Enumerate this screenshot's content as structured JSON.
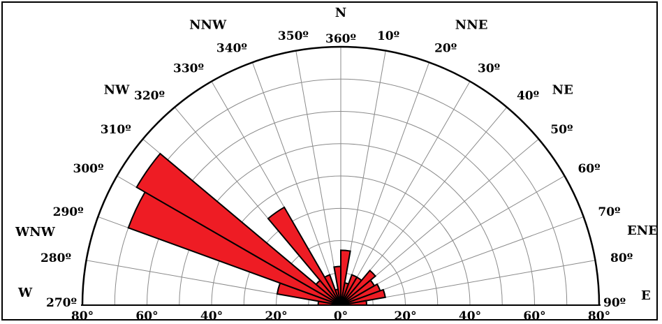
{
  "chart_data": {
    "type": "rose",
    "title": "",
    "half": "upper (270° through 360° to 90°)",
    "sector_width_deg": 10,
    "radial_range": [
      0,
      80
    ],
    "radial_tick_labels": [
      "80°",
      "60°",
      "40°",
      "20°",
      "0°",
      "20°",
      "40°",
      "60°",
      "80°"
    ],
    "angle_labels": [
      {
        "deg": 270,
        "text": "270º"
      },
      {
        "deg": 280,
        "text": "280º"
      },
      {
        "deg": 290,
        "text": "290º"
      },
      {
        "deg": 300,
        "text": "300º"
      },
      {
        "deg": 310,
        "text": "310º"
      },
      {
        "deg": 320,
        "text": "320º"
      },
      {
        "deg": 330,
        "text": "330º"
      },
      {
        "deg": 340,
        "text": "340º"
      },
      {
        "deg": 350,
        "text": "350º"
      },
      {
        "deg": 360,
        "text": "360º"
      },
      {
        "deg": 10,
        "text": "10º"
      },
      {
        "deg": 20,
        "text": "20º"
      },
      {
        "deg": 30,
        "text": "30º"
      },
      {
        "deg": 40,
        "text": "40º"
      },
      {
        "deg": 50,
        "text": "50º"
      },
      {
        "deg": 60,
        "text": "60º"
      },
      {
        "deg": 70,
        "text": "70º"
      },
      {
        "deg": 80,
        "text": "80º"
      },
      {
        "deg": 90,
        "text": "90º"
      }
    ],
    "direction_labels": [
      {
        "deg": 270,
        "text": "W"
      },
      {
        "deg": 292.5,
        "text": "WNW"
      },
      {
        "deg": 315,
        "text": "NW"
      },
      {
        "deg": 337.5,
        "text": "NNW"
      },
      {
        "deg": 360,
        "text": "N"
      },
      {
        "deg": 22.5,
        "text": "NNE"
      },
      {
        "deg": 45,
        "text": "NE"
      },
      {
        "deg": 67.5,
        "text": "ENE"
      },
      {
        "deg": 90,
        "text": "E"
      }
    ],
    "sectors": [
      {
        "from": 270,
        "to": 280,
        "value": 7
      },
      {
        "from": 280,
        "to": 290,
        "value": 20
      },
      {
        "from": 290,
        "to": 300,
        "value": 70
      },
      {
        "from": 300,
        "to": 310,
        "value": 73
      },
      {
        "from": 310,
        "to": 320,
        "value": 10
      },
      {
        "from": 320,
        "to": 330,
        "value": 35
      },
      {
        "from": 330,
        "to": 340,
        "value": 10
      },
      {
        "from": 340,
        "to": 350,
        "value": 5
      },
      {
        "from": 350,
        "to": 360,
        "value": 12
      },
      {
        "from": 0,
        "to": 10,
        "value": 17
      },
      {
        "from": 10,
        "to": 20,
        "value": 7
      },
      {
        "from": 20,
        "to": 30,
        "value": 10
      },
      {
        "from": 30,
        "to": 40,
        "value": 10
      },
      {
        "from": 40,
        "to": 50,
        "value": 14
      },
      {
        "from": 50,
        "to": 60,
        "value": 12
      },
      {
        "from": 60,
        "to": 70,
        "value": 13
      },
      {
        "from": 70,
        "to": 80,
        "value": 14
      },
      {
        "from": 80,
        "to": 90,
        "value": 8
      }
    ],
    "circle_step": 10,
    "radial_line_step_deg": 10,
    "fill": "#ee1c24",
    "stroke": "#000000",
    "grid_color": "#8a8a8a",
    "grid": true,
    "legend": "none"
  }
}
